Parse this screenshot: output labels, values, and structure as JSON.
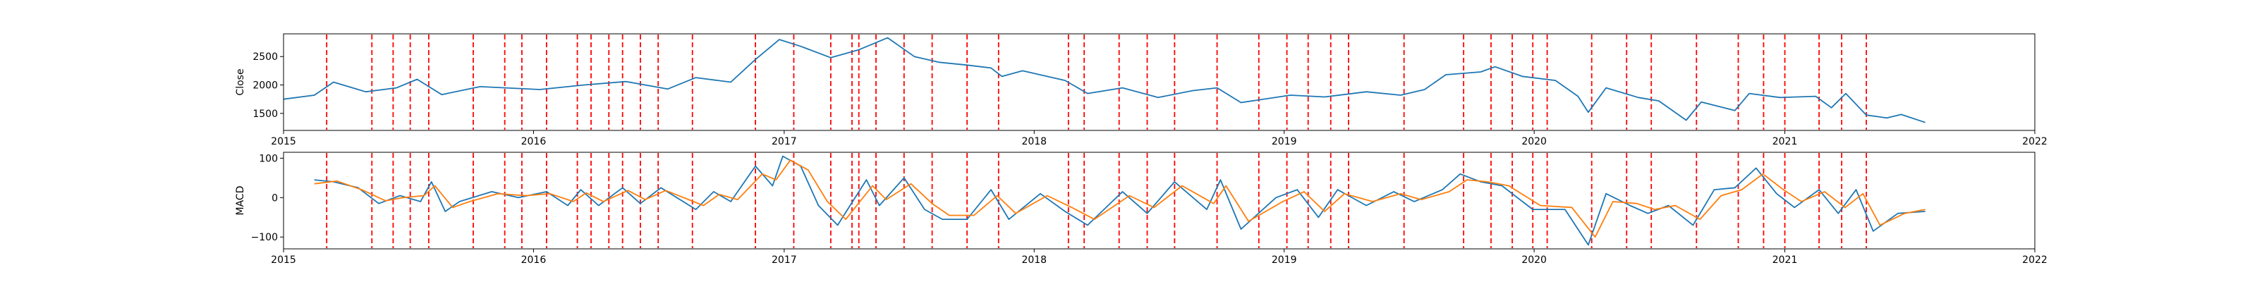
{
  "chart_data": [
    {
      "type": "line",
      "ylabel": "Close",
      "xlim": [
        "2015-01-01",
        "2022-01-01"
      ],
      "ylim": [
        1200,
        2900
      ],
      "x_ticks": [
        "2015",
        "2016",
        "2017",
        "2018",
        "2019",
        "2020",
        "2021",
        "2022"
      ],
      "y_ticks": [
        "1500",
        "2000",
        "2500"
      ],
      "y_tick_values": [
        1500,
        2000,
        2500
      ],
      "series": [
        {
          "color": "#1f77b4",
          "points": [
            [
              "2015-01-01",
              1750
            ],
            [
              "2015-02-15",
              1820
            ],
            [
              "2015-03-15",
              2050
            ],
            [
              "2015-05-01",
              1880
            ],
            [
              "2015-06-15",
              1950
            ],
            [
              "2015-07-15",
              2100
            ],
            [
              "2015-08-20",
              1830
            ],
            [
              "2015-10-15",
              1970
            ],
            [
              "2016-01-10",
              1920
            ],
            [
              "2016-03-15",
              2000
            ],
            [
              "2016-05-15",
              2060
            ],
            [
              "2016-07-15",
              1930
            ],
            [
              "2016-08-25",
              2130
            ],
            [
              "2016-10-15",
              2050
            ],
            [
              "2016-11-20",
              2450
            ],
            [
              "2016-12-25",
              2800
            ],
            [
              "2017-01-25",
              2680
            ],
            [
              "2017-03-10",
              2480
            ],
            [
              "2017-04-20",
              2620
            ],
            [
              "2017-06-01",
              2830
            ],
            [
              "2017-07-10",
              2500
            ],
            [
              "2017-08-15",
              2400
            ],
            [
              "2017-09-25",
              2350
            ],
            [
              "2017-10-30",
              2300
            ],
            [
              "2017-11-15",
              2150
            ],
            [
              "2017-12-15",
              2250
            ],
            [
              "2018-02-15",
              2080
            ],
            [
              "2018-03-20",
              1850
            ],
            [
              "2018-05-10",
              1950
            ],
            [
              "2018-07-01",
              1780
            ],
            [
              "2018-08-20",
              1900
            ],
            [
              "2018-09-25",
              1950
            ],
            [
              "2018-10-30",
              1690
            ],
            [
              "2019-01-10",
              1820
            ],
            [
              "2019-03-01",
              1790
            ],
            [
              "2019-05-01",
              1880
            ],
            [
              "2019-06-20",
              1820
            ],
            [
              "2019-07-25",
              1920
            ],
            [
              "2019-08-25",
              2180
            ],
            [
              "2019-10-15",
              2230
            ],
            [
              "2019-11-05",
              2320
            ],
            [
              "2019-12-15",
              2150
            ],
            [
              "2020-02-01",
              2080
            ],
            [
              "2020-03-05",
              1800
            ],
            [
              "2020-03-20",
              1520
            ],
            [
              "2020-04-15",
              1950
            ],
            [
              "2020-06-01",
              1780
            ],
            [
              "2020-07-01",
              1720
            ],
            [
              "2020-08-10",
              1380
            ],
            [
              "2020-09-01",
              1700
            ],
            [
              "2020-10-20",
              1550
            ],
            [
              "2020-11-10",
              1850
            ],
            [
              "2020-12-25",
              1780
            ],
            [
              "2021-02-15",
              1800
            ],
            [
              "2021-03-10",
              1600
            ],
            [
              "2021-03-31",
              1850
            ],
            [
              "2021-04-30",
              1470
            ],
            [
              "2021-05-30",
              1420
            ],
            [
              "2021-06-20",
              1480
            ],
            [
              "2021-07-25",
              1340
            ]
          ]
        }
      ],
      "vlines": {
        "color": "#ff0000",
        "dates": [
          "2015-03-05",
          "2015-05-10",
          "2015-06-10",
          "2015-07-05",
          "2015-08-01",
          "2015-10-05",
          "2015-11-20",
          "2015-12-15",
          "2016-01-20",
          "2016-03-05",
          "2016-03-25",
          "2016-04-20",
          "2016-05-10",
          "2016-06-05",
          "2016-07-01",
          "2016-08-20",
          "2016-11-20",
          "2017-01-15",
          "2017-03-10",
          "2017-04-10",
          "2017-04-20",
          "2017-05-15",
          "2017-06-25",
          "2017-08-05",
          "2017-09-25",
          "2017-11-10",
          "2018-02-20",
          "2018-03-15",
          "2018-05-05",
          "2018-06-15",
          "2018-07-25",
          "2018-09-25",
          "2018-11-25",
          "2019-01-05",
          "2019-02-05",
          "2019-03-10",
          "2019-04-05",
          "2019-06-25",
          "2019-09-20",
          "2019-10-30",
          "2019-11-30",
          "2019-12-30",
          "2020-01-20",
          "2020-03-25",
          "2020-05-15",
          "2020-06-20",
          "2020-08-25",
          "2020-10-25",
          "2020-12-01",
          "2021-01-01",
          "2021-02-20",
          "2021-03-25",
          "2021-04-30"
        ]
      }
    },
    {
      "type": "line",
      "ylabel": "MACD",
      "xlim": [
        "2015-01-01",
        "2022-01-01"
      ],
      "ylim": [
        -130,
        115
      ],
      "x_ticks": [
        "2015",
        "2016",
        "2017",
        "2018",
        "2019",
        "2020",
        "2021",
        "2022"
      ],
      "y_ticks": [
        "−100",
        "0",
        "100"
      ],
      "y_tick_values": [
        -100,
        0,
        100
      ],
      "series": [
        {
          "color": "#1f77b4",
          "points": [
            [
              "2015-02-15",
              45
            ],
            [
              "2015-03-15",
              40
            ],
            [
              "2015-04-20",
              25
            ],
            [
              "2015-05-20",
              -15
            ],
            [
              "2015-06-20",
              5
            ],
            [
              "2015-07-20",
              -10
            ],
            [
              "2015-08-05",
              40
            ],
            [
              "2015-08-25",
              -35
            ],
            [
              "2015-09-15",
              -10
            ],
            [
              "2015-11-01",
              15
            ],
            [
              "2015-12-10",
              0
            ],
            [
              "2016-01-20",
              15
            ],
            [
              "2016-02-20",
              -20
            ],
            [
              "2016-03-10",
              20
            ],
            [
              "2016-04-05",
              -20
            ],
            [
              "2016-05-10",
              25
            ],
            [
              "2016-06-05",
              -15
            ],
            [
              "2016-07-05",
              25
            ],
            [
              "2016-08-25",
              -30
            ],
            [
              "2016-09-20",
              15
            ],
            [
              "2016-10-15",
              -10
            ],
            [
              "2016-11-20",
              80
            ],
            [
              "2016-12-15",
              30
            ],
            [
              "2016-12-30",
              105
            ],
            [
              "2017-01-25",
              80
            ],
            [
              "2017-02-20",
              -20
            ],
            [
              "2017-03-20",
              -70
            ],
            [
              "2017-05-01",
              45
            ],
            [
              "2017-05-20",
              -20
            ],
            [
              "2017-06-25",
              50
            ],
            [
              "2017-07-25",
              -30
            ],
            [
              "2017-08-20",
              -55
            ],
            [
              "2017-09-25",
              -55
            ],
            [
              "2017-10-30",
              20
            ],
            [
              "2017-11-25",
              -55
            ],
            [
              "2018-01-10",
              10
            ],
            [
              "2018-02-15",
              -35
            ],
            [
              "2018-03-20",
              -70
            ],
            [
              "2018-05-10",
              15
            ],
            [
              "2018-06-15",
              -40
            ],
            [
              "2018-07-25",
              40
            ],
            [
              "2018-09-10",
              -30
            ],
            [
              "2018-09-30",
              45
            ],
            [
              "2018-10-30",
              -80
            ],
            [
              "2018-12-20",
              0
            ],
            [
              "2019-01-20",
              20
            ],
            [
              "2019-02-20",
              -50
            ],
            [
              "2019-03-20",
              20
            ],
            [
              "2019-05-01",
              -20
            ],
            [
              "2019-06-10",
              15
            ],
            [
              "2019-07-10",
              -10
            ],
            [
              "2019-08-20",
              20
            ],
            [
              "2019-09-15",
              60
            ],
            [
              "2019-10-15",
              40
            ],
            [
              "2019-11-15",
              30
            ],
            [
              "2019-12-30",
              -30
            ],
            [
              "2020-02-15",
              -30
            ],
            [
              "2020-03-20",
              -120
            ],
            [
              "2020-04-15",
              10
            ],
            [
              "2020-05-20",
              -20
            ],
            [
              "2020-06-15",
              -40
            ],
            [
              "2020-07-15",
              -20
            ],
            [
              "2020-08-20",
              -70
            ],
            [
              "2020-09-20",
              20
            ],
            [
              "2020-10-20",
              25
            ],
            [
              "2020-11-20",
              75
            ],
            [
              "2020-12-20",
              10
            ],
            [
              "2021-01-15",
              -25
            ],
            [
              "2021-02-20",
              20
            ],
            [
              "2021-03-20",
              -40
            ],
            [
              "2021-04-15",
              20
            ],
            [
              "2021-05-10",
              -85
            ],
            [
              "2021-06-15",
              -40
            ],
            [
              "2021-07-25",
              -35
            ]
          ]
        },
        {
          "color": "#ff7f0e",
          "points": [
            [
              "2015-02-15",
              35
            ],
            [
              "2015-03-20",
              42
            ],
            [
              "2015-04-25",
              20
            ],
            [
              "2015-05-30",
              -8
            ],
            [
              "2015-06-25",
              0
            ],
            [
              "2015-07-25",
              5
            ],
            [
              "2015-08-10",
              30
            ],
            [
              "2015-09-05",
              -25
            ],
            [
              "2015-09-30",
              -10
            ],
            [
              "2015-11-10",
              10
            ],
            [
              "2015-12-20",
              5
            ],
            [
              "2016-01-25",
              10
            ],
            [
              "2016-02-28",
              -10
            ],
            [
              "2016-03-18",
              12
            ],
            [
              "2016-04-12",
              -10
            ],
            [
              "2016-05-18",
              18
            ],
            [
              "2016-06-12",
              -5
            ],
            [
              "2016-07-12",
              18
            ],
            [
              "2016-09-05",
              -20
            ],
            [
              "2016-09-28",
              8
            ],
            [
              "2016-10-25",
              -5
            ],
            [
              "2016-11-30",
              60
            ],
            [
              "2016-12-20",
              45
            ],
            [
              "2017-01-10",
              95
            ],
            [
              "2017-02-05",
              70
            ],
            [
              "2017-03-05",
              -10
            ],
            [
              "2017-04-01",
              -55
            ],
            [
              "2017-05-10",
              30
            ],
            [
              "2017-05-30",
              -5
            ],
            [
              "2017-07-05",
              35
            ],
            [
              "2017-08-05",
              -15
            ],
            [
              "2017-08-30",
              -45
            ],
            [
              "2017-10-05",
              -45
            ],
            [
              "2017-11-08",
              5
            ],
            [
              "2017-12-05",
              -40
            ],
            [
              "2018-01-20",
              5
            ],
            [
              "2018-02-25",
              -25
            ],
            [
              "2018-03-30",
              -55
            ],
            [
              "2018-05-20",
              5
            ],
            [
              "2018-06-25",
              -25
            ],
            [
              "2018-08-05",
              30
            ],
            [
              "2018-09-20",
              -15
            ],
            [
              "2018-10-08",
              30
            ],
            [
              "2018-11-10",
              -60
            ],
            [
              "2018-12-30",
              -10
            ],
            [
              "2019-01-30",
              15
            ],
            [
              "2019-03-01",
              -35
            ],
            [
              "2019-03-30",
              10
            ],
            [
              "2019-05-10",
              -10
            ],
            [
              "2019-06-20",
              10
            ],
            [
              "2019-07-20",
              -5
            ],
            [
              "2019-08-30",
              15
            ],
            [
              "2019-09-25",
              45
            ],
            [
              "2019-10-25",
              40
            ],
            [
              "2019-11-25",
              30
            ],
            [
              "2020-01-10",
              -20
            ],
            [
              "2020-02-25",
              -25
            ],
            [
              "2020-03-30",
              -100
            ],
            [
              "2020-04-25",
              -10
            ],
            [
              "2020-05-30",
              -15
            ],
            [
              "2020-06-25",
              -30
            ],
            [
              "2020-07-25",
              -20
            ],
            [
              "2020-08-30",
              -55
            ],
            [
              "2020-09-30",
              5
            ],
            [
              "2020-10-30",
              20
            ],
            [
              "2020-11-30",
              60
            ],
            [
              "2020-12-30",
              20
            ],
            [
              "2021-01-25",
              -10
            ],
            [
              "2021-02-28",
              15
            ],
            [
              "2021-03-30",
              -25
            ],
            [
              "2021-04-25",
              10
            ],
            [
              "2021-05-20",
              -70
            ],
            [
              "2021-06-25",
              -40
            ],
            [
              "2021-07-25",
              -30
            ]
          ]
        }
      ],
      "vlines": {
        "color": "#ff0000",
        "dates": [
          "2015-03-05",
          "2015-05-10",
          "2015-06-10",
          "2015-07-05",
          "2015-08-01",
          "2015-10-05",
          "2015-11-20",
          "2015-12-15",
          "2016-01-20",
          "2016-03-05",
          "2016-03-25",
          "2016-04-20",
          "2016-05-10",
          "2016-06-05",
          "2016-07-01",
          "2016-08-20",
          "2016-11-20",
          "2017-01-15",
          "2017-03-10",
          "2017-04-10",
          "2017-04-20",
          "2017-05-15",
          "2017-06-25",
          "2017-08-05",
          "2017-09-25",
          "2017-11-10",
          "2018-02-20",
          "2018-03-15",
          "2018-05-05",
          "2018-06-15",
          "2018-07-25",
          "2018-09-25",
          "2018-11-25",
          "2019-01-05",
          "2019-02-05",
          "2019-03-10",
          "2019-04-05",
          "2019-06-25",
          "2019-09-20",
          "2019-10-30",
          "2019-11-30",
          "2019-12-30",
          "2020-01-20",
          "2020-03-25",
          "2020-05-15",
          "2020-06-20",
          "2020-08-25",
          "2020-10-25",
          "2020-12-01",
          "2021-01-01",
          "2021-02-20",
          "2021-03-25",
          "2021-04-30"
        ]
      }
    }
  ]
}
